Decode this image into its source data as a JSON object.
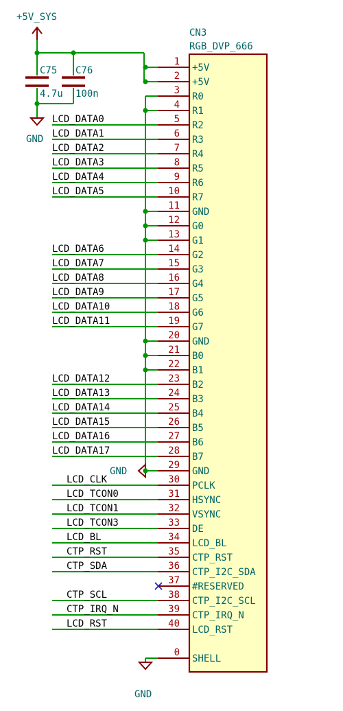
{
  "connector": {
    "reference": "CN3",
    "value": "RGB_DVP_666",
    "pins": [
      {
        "num": "1",
        "name": "+5V",
        "net": "",
        "bus": "pwr"
      },
      {
        "num": "2",
        "name": "+5V",
        "net": "",
        "bus": "pwr"
      },
      {
        "num": "3",
        "name": "R0",
        "net": "",
        "bus": "gnd"
      },
      {
        "num": "4",
        "name": "R1",
        "net": "",
        "bus": "gnd"
      },
      {
        "num": "5",
        "name": "R2",
        "net": "LCD_DATA0",
        "bus": ""
      },
      {
        "num": "6",
        "name": "R3",
        "net": "LCD_DATA1",
        "bus": ""
      },
      {
        "num": "7",
        "name": "R4",
        "net": "LCD_DATA2",
        "bus": ""
      },
      {
        "num": "8",
        "name": "R5",
        "net": "LCD_DATA3",
        "bus": ""
      },
      {
        "num": "9",
        "name": "R6",
        "net": "LCD_DATA4",
        "bus": ""
      },
      {
        "num": "10",
        "name": "R7",
        "net": "LCD_DATA5",
        "bus": ""
      },
      {
        "num": "11",
        "name": "GND",
        "net": "",
        "bus": "gnd"
      },
      {
        "num": "12",
        "name": "G0",
        "net": "",
        "bus": "gnd"
      },
      {
        "num": "13",
        "name": "G1",
        "net": "",
        "bus": "gnd"
      },
      {
        "num": "14",
        "name": "G2",
        "net": "LCD_DATA6",
        "bus": ""
      },
      {
        "num": "15",
        "name": "G3",
        "net": "LCD_DATA7",
        "bus": ""
      },
      {
        "num": "16",
        "name": "G4",
        "net": "LCD_DATA8",
        "bus": ""
      },
      {
        "num": "17",
        "name": "G5",
        "net": "LCD_DATA9",
        "bus": ""
      },
      {
        "num": "18",
        "name": "G6",
        "net": "LCD_DATA10",
        "bus": ""
      },
      {
        "num": "19",
        "name": "G7",
        "net": "LCD_DATA11",
        "bus": ""
      },
      {
        "num": "20",
        "name": "GND",
        "net": "",
        "bus": "gnd"
      },
      {
        "num": "21",
        "name": "B0",
        "net": "",
        "bus": "gnd"
      },
      {
        "num": "22",
        "name": "B1",
        "net": "",
        "bus": "gnd"
      },
      {
        "num": "23",
        "name": "B2",
        "net": "LCD_DATA12",
        "bus": ""
      },
      {
        "num": "24",
        "name": "B3",
        "net": "LCD_DATA13",
        "bus": ""
      },
      {
        "num": "25",
        "name": "B4",
        "net": "LCD_DATA14",
        "bus": ""
      },
      {
        "num": "26",
        "name": "B5",
        "net": "LCD_DATA15",
        "bus": ""
      },
      {
        "num": "27",
        "name": "B6",
        "net": "LCD_DATA16",
        "bus": ""
      },
      {
        "num": "28",
        "name": "B7",
        "net": "LCD_DATA17",
        "bus": ""
      },
      {
        "num": "29",
        "name": "GND",
        "net": "",
        "bus": "gnd"
      },
      {
        "num": "30",
        "name": "PCLK",
        "net": "LCD_CLK",
        "bus": ""
      },
      {
        "num": "31",
        "name": "HSYNC",
        "net": "LCD_TCON0",
        "bus": ""
      },
      {
        "num": "32",
        "name": "VSYNC",
        "net": "LCD_TCON1",
        "bus": ""
      },
      {
        "num": "33",
        "name": "DE",
        "net": "LCD_TCON3",
        "bus": ""
      },
      {
        "num": "34",
        "name": "LCD_BL",
        "net": "LCD_BL",
        "bus": ""
      },
      {
        "num": "35",
        "name": "CTP_RST",
        "net": "CTP_RST",
        "bus": ""
      },
      {
        "num": "36",
        "name": "CTP_I2C_SDA",
        "net": "CTP_SDA",
        "bus": ""
      },
      {
        "num": "37",
        "name": "#RESERVED",
        "net": "",
        "bus": "nc"
      },
      {
        "num": "38",
        "name": "CTP_I2C_SCL",
        "net": "CTP_SCL",
        "bus": ""
      },
      {
        "num": "39",
        "name": "CTP_IRQ_N",
        "net": "CTP_IRQ_N",
        "bus": ""
      },
      {
        "num": "40",
        "name": "LCD_RST",
        "net": "LCD_RST",
        "bus": ""
      },
      {
        "num": "0",
        "name": "SHELL",
        "net": "",
        "bus": "shell"
      }
    ]
  },
  "power": {
    "supply_label": "+5V_SYS",
    "ground_label": "GND"
  },
  "capacitors": [
    {
      "reference": "C75",
      "value": "4.7u"
    },
    {
      "reference": "C76",
      "value": "100n"
    }
  ],
  "colors": {
    "wire": "#009600",
    "pin": "#840000",
    "body_fill": "#ffffc2",
    "net_text": "#000000",
    "pin_name": "#006464",
    "pin_number": "#a00000",
    "no_connect": "#1a1ab4"
  }
}
